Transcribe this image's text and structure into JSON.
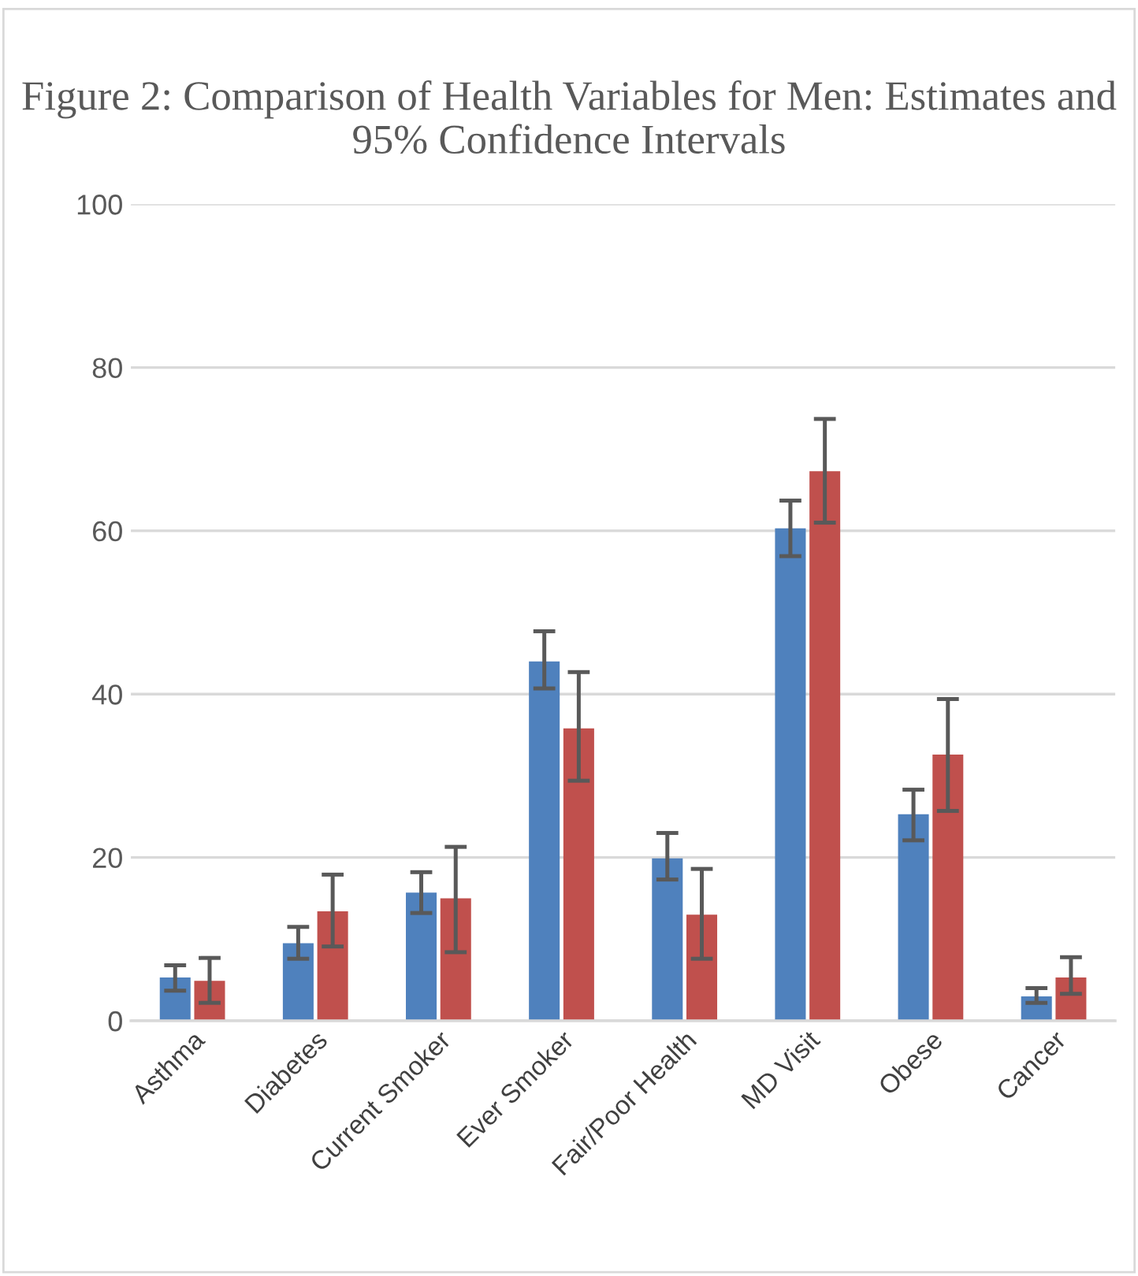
{
  "chart_data": {
    "type": "bar",
    "title": "Figure 2: Comparison of Health Variables for Men: Estimates and 95% Confidence Intervals",
    "categories": [
      "Asthma",
      "Diabetes",
      "Current Smoker",
      "Ever Smoker",
      "Fair/Poor Health",
      "MD Visit",
      "Obese",
      "Cancer"
    ],
    "series": [
      {
        "color": "#4f81bd",
        "values": [
          5.3,
          9.5,
          15.7,
          44.0,
          19.9,
          60.3,
          25.3,
          3.0
        ],
        "errors": [
          [
            3.7,
            6.8
          ],
          [
            7.6,
            11.5
          ],
          [
            13.2,
            18.2
          ],
          [
            40.7,
            47.7
          ],
          [
            17.3,
            23.0
          ],
          [
            56.9,
            63.7
          ],
          [
            22.1,
            28.3
          ],
          [
            2.2,
            4.0
          ]
        ]
      },
      {
        "color": "#c0504d",
        "values": [
          4.9,
          13.4,
          15.0,
          35.8,
          13.0,
          67.3,
          32.6,
          5.3
        ],
        "errors": [
          [
            2.2,
            7.7
          ],
          [
            9.1,
            17.9
          ],
          [
            8.4,
            21.3
          ],
          [
            29.4,
            42.7
          ],
          [
            7.6,
            18.6
          ],
          [
            61.0,
            73.7
          ],
          [
            25.7,
            39.4
          ],
          [
            3.3,
            7.8
          ]
        ]
      }
    ],
    "ylim": [
      0,
      100
    ],
    "yticks": [
      0,
      20,
      40,
      60,
      80,
      100
    ],
    "grid": "y",
    "legend": false
  }
}
